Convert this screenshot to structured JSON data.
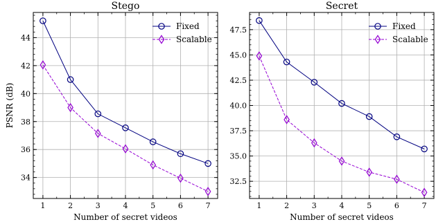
{
  "chart_data": [
    {
      "type": "line",
      "title": "Stego",
      "xlabel": "Number of secret videos",
      "ylabel": "PSNR (dB)",
      "x": [
        1,
        2,
        3,
        4,
        5,
        6,
        7
      ],
      "xlim": [
        0.65,
        7.35
      ],
      "ylim": [
        32.5,
        45.8
      ],
      "yticks": [
        34,
        36,
        38,
        40,
        42,
        44
      ],
      "ytick_labels": [
        "34",
        "36",
        "38",
        "40",
        "42",
        "44"
      ],
      "grid": true,
      "legend_position": "top-right",
      "series": [
        {
          "name": "Fixed",
          "values": [
            45.2,
            41.0,
            38.55,
            37.55,
            36.55,
            35.7,
            35.0
          ],
          "color": "#000080",
          "marker": "circle",
          "linestyle": "solid"
        },
        {
          "name": "Scalable",
          "values": [
            42.05,
            39.0,
            37.15,
            36.05,
            34.9,
            33.95,
            33.0
          ],
          "color": "#9400D3",
          "marker": "diamond",
          "linestyle": "dashed"
        }
      ]
    },
    {
      "type": "line",
      "title": "Secret",
      "xlabel": "Number of secret videos",
      "ylabel": "",
      "x": [
        1,
        2,
        3,
        4,
        5,
        6,
        7
      ],
      "xlim": [
        0.65,
        7.35
      ],
      "ylim": [
        30.8,
        49.2
      ],
      "yticks": [
        32.5,
        35.0,
        37.5,
        40.0,
        42.5,
        45.0,
        47.5
      ],
      "ytick_labels": [
        "32.5",
        "35.0",
        "37.5",
        "40.0",
        "42.5",
        "45.0",
        "47.5"
      ],
      "grid": true,
      "legend_position": "top-right",
      "series": [
        {
          "name": "Fixed",
          "values": [
            48.4,
            44.3,
            42.3,
            40.2,
            38.9,
            36.9,
            35.7
          ],
          "color": "#000080",
          "marker": "circle",
          "linestyle": "solid"
        },
        {
          "name": "Scalable",
          "values": [
            44.9,
            38.6,
            36.3,
            34.5,
            33.4,
            32.7,
            31.4
          ],
          "color": "#9400D3",
          "marker": "diamond",
          "linestyle": "dashed"
        }
      ]
    }
  ]
}
